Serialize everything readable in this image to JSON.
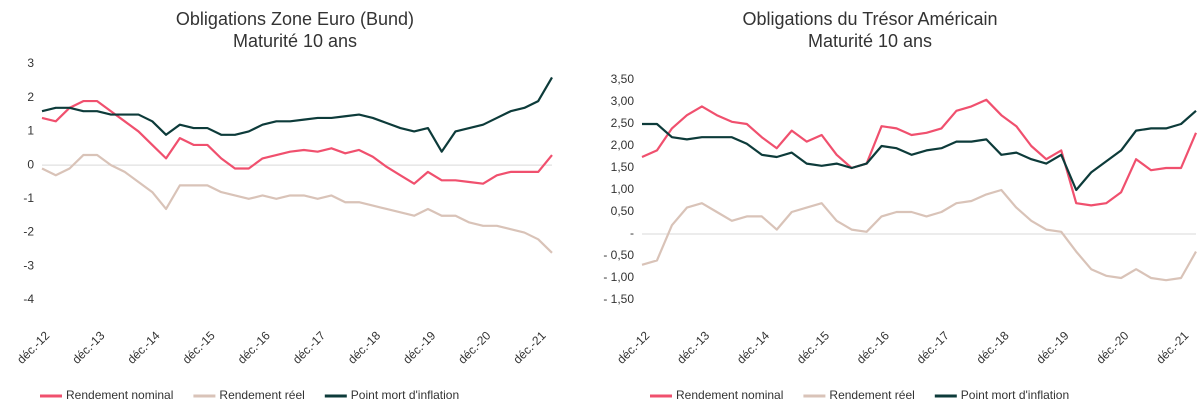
{
  "chart_data": [
    {
      "type": "line",
      "title": "Obligations Zone Euro (Bund)",
      "subtitle": "Maturité 10 ans",
      "categories": [
        "déc.-12",
        null,
        null,
        null,
        "déc.-13",
        null,
        null,
        null,
        "déc.-14",
        null,
        null,
        null,
        "déc.-15",
        null,
        null,
        null,
        "déc.-16",
        null,
        null,
        null,
        "déc.-17",
        null,
        null,
        null,
        "déc.-18",
        null,
        null,
        null,
        "déc.-19",
        null,
        null,
        null,
        "déc.-20",
        null,
        null,
        null,
        "déc.-21",
        null
      ],
      "ylim": [
        -4,
        3
      ],
      "yticks": [
        -4,
        -3,
        -2,
        -1,
        0,
        1,
        2,
        3
      ],
      "legend": "bottom",
      "series": [
        {
          "name": "Rendement nominal",
          "color": "#f0506e",
          "values": [
            1.4,
            1.3,
            1.7,
            1.9,
            1.9,
            1.6,
            1.3,
            1.0,
            0.6,
            0.2,
            0.8,
            0.6,
            0.6,
            0.2,
            -0.1,
            -0.1,
            0.2,
            0.3,
            0.4,
            0.45,
            0.4,
            0.5,
            0.35,
            0.45,
            0.25,
            -0.05,
            -0.3,
            -0.55,
            -0.2,
            -0.45,
            -0.45,
            -0.5,
            -0.55,
            -0.3,
            -0.2,
            -0.2,
            -0.2,
            0.3
          ]
        },
        {
          "name": "Rendement réel",
          "color": "#d9c3b8",
          "values": [
            -0.1,
            -0.3,
            -0.1,
            0.3,
            0.3,
            0.0,
            -0.2,
            -0.5,
            -0.8,
            -1.3,
            -0.6,
            -0.6,
            -0.6,
            -0.8,
            -0.9,
            -1.0,
            -0.9,
            -1.0,
            -0.9,
            -0.9,
            -1.0,
            -0.9,
            -1.1,
            -1.1,
            -1.2,
            -1.3,
            -1.4,
            -1.5,
            -1.3,
            -1.5,
            -1.5,
            -1.7,
            -1.8,
            -1.8,
            -1.9,
            -2.0,
            -2.2,
            -2.6
          ]
        },
        {
          "name": "Point mort d'inflation",
          "color": "#0d3b3a",
          "values": [
            1.6,
            1.7,
            1.7,
            1.6,
            1.6,
            1.5,
            1.5,
            1.5,
            1.3,
            0.9,
            1.2,
            1.1,
            1.1,
            0.9,
            0.9,
            1.0,
            1.2,
            1.3,
            1.3,
            1.35,
            1.4,
            1.4,
            1.45,
            1.5,
            1.4,
            1.25,
            1.1,
            1.0,
            1.1,
            0.4,
            1.0,
            1.1,
            1.2,
            1.4,
            1.6,
            1.7,
            1.9,
            2.6
          ]
        }
      ]
    },
    {
      "type": "line",
      "title": "Obligations du Trésor Américain",
      "subtitle": "Maturité 10 ans",
      "categories": [
        "déc.-12",
        null,
        null,
        null,
        "déc.-13",
        null,
        null,
        null,
        "déc.-14",
        null,
        null,
        null,
        "déc.-15",
        null,
        null,
        null,
        "déc.-16",
        null,
        null,
        null,
        "déc.-17",
        null,
        null,
        null,
        "déc.-18",
        null,
        null,
        null,
        "déc.-19",
        null,
        null,
        null,
        "déc.-20",
        null,
        null,
        null,
        "déc.-21",
        null
      ],
      "ylim": [
        -1.5,
        3.5
      ],
      "yticks": [
        {
          "value": -1.5,
          "label": "- 1,50"
        },
        {
          "value": -1,
          "label": "- 1,00"
        },
        {
          "value": -0.5,
          "label": "- 0,50"
        },
        {
          "value": 0,
          "label": "-"
        },
        {
          "value": 0.5,
          "label": "0,50"
        },
        {
          "value": 1,
          "label": "1,00"
        },
        {
          "value": 1.5,
          "label": "1,50"
        },
        {
          "value": 2,
          "label": "2,00"
        },
        {
          "value": 2.5,
          "label": "2,50"
        },
        {
          "value": 3,
          "label": "3,00"
        },
        {
          "value": 3.5,
          "label": "3,50"
        }
      ],
      "legend": "bottom",
      "series": [
        {
          "name": "Rendement nominal",
          "color": "#f0506e",
          "values": [
            1.75,
            1.9,
            2.4,
            2.7,
            2.9,
            2.7,
            2.55,
            2.5,
            2.2,
            1.95,
            2.35,
            2.1,
            2.25,
            1.8,
            1.5,
            1.6,
            2.45,
            2.4,
            2.25,
            2.3,
            2.4,
            2.8,
            2.9,
            3.05,
            2.7,
            2.45,
            2.0,
            1.7,
            1.9,
            0.7,
            0.65,
            0.7,
            0.95,
            1.7,
            1.45,
            1.5,
            1.5,
            2.3
          ]
        },
        {
          "name": "Rendement réel",
          "color": "#d9c3b8",
          "values": [
            -0.7,
            -0.6,
            0.2,
            0.6,
            0.7,
            0.5,
            0.3,
            0.4,
            0.4,
            0.1,
            0.5,
            0.6,
            0.7,
            0.3,
            0.1,
            0.05,
            0.4,
            0.5,
            0.5,
            0.4,
            0.5,
            0.7,
            0.75,
            0.9,
            1.0,
            0.6,
            0.3,
            0.1,
            0.05,
            -0.4,
            -0.8,
            -0.95,
            -1.0,
            -0.8,
            -1.0,
            -1.05,
            -1.0,
            -0.4
          ]
        },
        {
          "name": "Point mort d'inflation",
          "color": "#0d3b3a",
          "values": [
            2.5,
            2.5,
            2.2,
            2.15,
            2.2,
            2.2,
            2.2,
            2.05,
            1.8,
            1.75,
            1.85,
            1.6,
            1.55,
            1.6,
            1.5,
            1.6,
            2.0,
            1.95,
            1.8,
            1.9,
            1.95,
            2.1,
            2.1,
            2.15,
            1.8,
            1.85,
            1.7,
            1.6,
            1.8,
            1.0,
            1.4,
            1.65,
            1.9,
            2.35,
            2.4,
            2.4,
            2.5,
            2.8
          ]
        }
      ]
    }
  ]
}
